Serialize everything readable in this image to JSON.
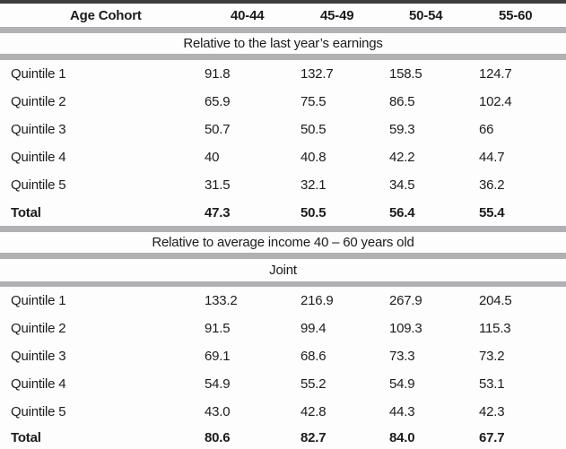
{
  "colors": {
    "top_border": "#3e3e40",
    "separator": "#b1b1b3",
    "text": "#1c1c1e"
  },
  "table": {
    "header": {
      "label": "Age Cohort",
      "cols": [
        "40-44",
        "45-49",
        "50-54",
        "55-60"
      ]
    },
    "sections": [
      {
        "title": "Relative to the last year’s earnings",
        "rows": [
          {
            "label": "Quintile 1",
            "values": [
              "91.8",
              "132.7",
              "158.5",
              "124.7"
            ]
          },
          {
            "label": "Quintile 2",
            "values": [
              "65.9",
              "75.5",
              "86.5",
              "102.4"
            ]
          },
          {
            "label": "Quintile 3",
            "values": [
              "50.7",
              "50.5",
              "59.3",
              "66"
            ]
          },
          {
            "label": "Quintile 4",
            "values": [
              "40",
              "40.8",
              "42.2",
              "44.7"
            ]
          },
          {
            "label": "Quintile 5",
            "values": [
              "31.5",
              "32.1",
              "34.5",
              "36.2"
            ]
          },
          {
            "label": "Total",
            "values": [
              "47.3",
              "50.5",
              "56.4",
              "55.4"
            ]
          }
        ]
      },
      {
        "title": "Relative to average income 40 – 60 years old",
        "rows": []
      },
      {
        "title": "Joint",
        "rows": [
          {
            "label": "Quintile 1",
            "values": [
              "133.2",
              "216.9",
              "267.9",
              "204.5"
            ]
          },
          {
            "label": "Quintile 2",
            "values": [
              "91.5",
              "99.4",
              "109.3",
              "115.3"
            ]
          },
          {
            "label": "Quintile 3",
            "values": [
              "69.1",
              "68.6",
              "73.3",
              "73.2"
            ]
          },
          {
            "label": "Quintile 4",
            "values": [
              "54.9",
              "55.2",
              "54.9",
              "53.1"
            ]
          },
          {
            "label": "Quintile 5",
            "values": [
              "43.0",
              "42.8",
              "44.3",
              "42.3"
            ]
          },
          {
            "label": "Total",
            "values": [
              "80.6",
              "82.7",
              "84.0",
              "67.7"
            ]
          }
        ]
      }
    ]
  }
}
